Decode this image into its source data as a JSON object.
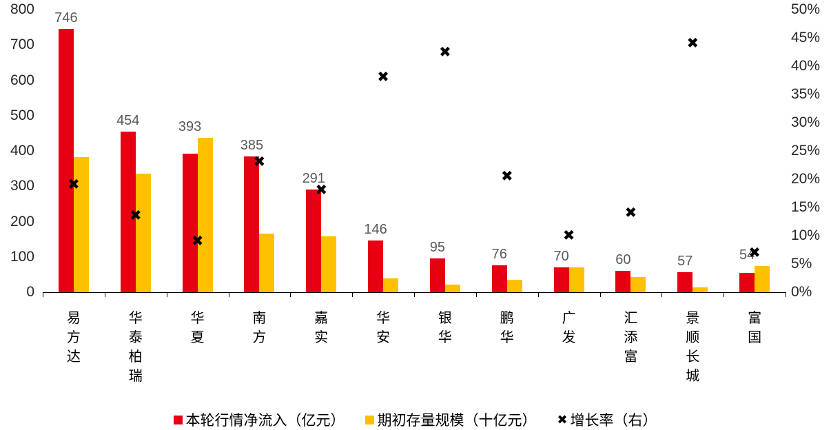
{
  "chart_data": {
    "type": "bar",
    "subtype": "dual-axis clustered bars with scatter x-markers",
    "grid": false,
    "legend_position": "bottom",
    "value_label_color": "#595959",
    "categories": [
      "易方达",
      "华泰柏瑞",
      "华夏",
      "南方",
      "嘉实",
      "华安",
      "银华",
      "鹏华",
      "广发",
      "汇添富",
      "景顺长城",
      "富国"
    ],
    "series": [
      {
        "name": "本轮行情净流入（亿元）",
        "type": "bar",
        "axis": "left",
        "color": "#e60012",
        "values": [
          746,
          454,
          393,
          385,
          291,
          146,
          95,
          76,
          70,
          60,
          57,
          54
        ],
        "data_labels": [
          "746",
          "454",
          "393",
          "385",
          "291",
          "146",
          "95",
          "76",
          "70",
          "60",
          "57",
          "54"
        ]
      },
      {
        "name": "期初存量规模（十亿元）",
        "type": "bar",
        "axis": "left",
        "color": "#ffc000",
        "values": [
          383,
          336,
          437,
          165,
          158,
          39,
          22,
          35,
          71,
          43,
          14,
          74
        ]
      },
      {
        "name": "增长率（右）",
        "type": "scatter",
        "marker": "x",
        "glyph": "✖",
        "axis": "right",
        "color": "#000000",
        "values": [
          19,
          13.5,
          9,
          23,
          18,
          38,
          42.5,
          20.5,
          10,
          14,
          44,
          7
        ]
      }
    ],
    "left_axis": {
      "min": 0,
      "max": 800,
      "step": 100,
      "tick_labels": [
        "800",
        "700",
        "600",
        "500",
        "400",
        "300",
        "200",
        "100",
        "0"
      ]
    },
    "right_axis": {
      "min": 0,
      "max": 50,
      "step": 5,
      "tick_labels": [
        "50%",
        "45%",
        "40%",
        "35%",
        "30%",
        "25%",
        "20%",
        "15%",
        "10%",
        "5%",
        "0%"
      ]
    },
    "legend": [
      {
        "label": "本轮行情净流入（亿元）",
        "marker": "square",
        "color": "#e60012"
      },
      {
        "label": "期初存量规模（十亿元）",
        "marker": "square",
        "color": "#ffc000"
      },
      {
        "label": "增长率（右）",
        "marker": "x",
        "glyph": "✖",
        "color": "#000000"
      }
    ]
  }
}
